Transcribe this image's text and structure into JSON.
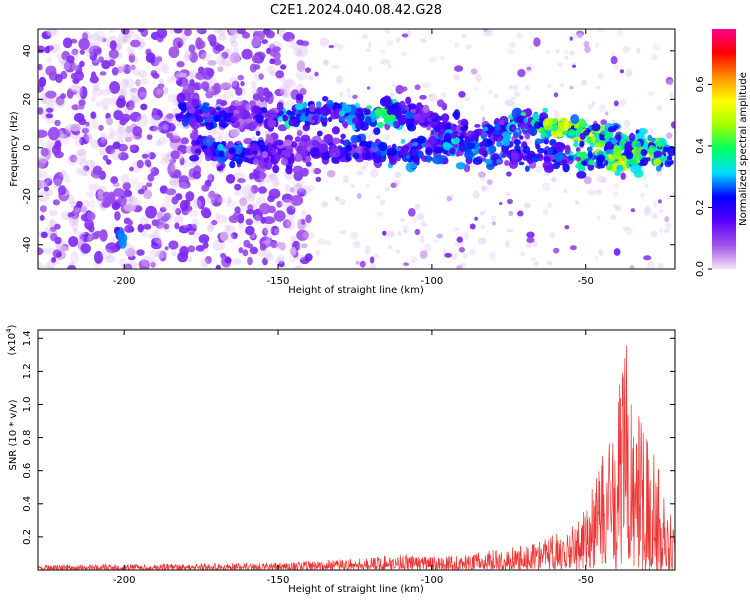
{
  "title": "C2E1.2024.040.08.42.G28",
  "chart_data": [
    {
      "type": "scatter",
      "xlabel": "Height of straight line (km)",
      "ylabel": "Frequency (Hz)",
      "xlim": [
        -228,
        -21
      ],
      "ylim": [
        -50,
        49
      ],
      "x_ticks": [
        -200,
        -150,
        -100,
        -50
      ],
      "y_ticks": [
        -40,
        -20,
        0,
        20,
        40
      ],
      "x_tick_labels": [
        "-200",
        "-150",
        "-100",
        "-50"
      ],
      "y_tick_labels": [
        "-40",
        "-20",
        "0",
        "20",
        "40"
      ],
      "grid": false,
      "colorbar": {
        "label": "Normalized spectral amplitude",
        "range": [
          0,
          0.78
        ],
        "ticks": [
          0.0,
          0.2,
          0.4,
          0.6
        ],
        "tick_labels": [
          "0.0",
          "0.2",
          "0.4",
          "0.6"
        ],
        "colors": [
          "#f2e3f7",
          "#a050e8",
          "#5a00ff",
          "#0000ff",
          "#00e0ff",
          "#00ff60",
          "#a0ff00",
          "#ffff00",
          "#ff9000",
          "#ff0000",
          "#ff0090"
        ]
      },
      "background_scatter": {
        "x_range": [
          -228,
          -21
        ],
        "y_range": [
          -50,
          49
        ],
        "typical_amplitude": [
          0.02,
          0.12
        ],
        "density_high_x": [
          -228,
          -140
        ]
      },
      "main_track": {
        "name": "",
        "points": [
          {
            "x": -183,
            "y": 15,
            "amp": 0.2
          },
          {
            "x": -175,
            "y": 14,
            "amp": 0.28
          },
          {
            "x": -160,
            "y": 12,
            "amp": 0.12
          },
          {
            "x": -148,
            "y": 13,
            "amp": 0.32
          },
          {
            "x": -135,
            "y": 15,
            "amp": 0.25
          },
          {
            "x": -122,
            "y": 13,
            "amp": 0.3
          },
          {
            "x": -115,
            "y": 14,
            "amp": 0.42
          },
          {
            "x": -105,
            "y": 14,
            "amp": 0.18
          },
          {
            "x": -95,
            "y": 8,
            "amp": 0.2
          },
          {
            "x": -85,
            "y": 6,
            "amp": 0.25
          },
          {
            "x": -75,
            "y": 8,
            "amp": 0.3
          },
          {
            "x": -65,
            "y": 10,
            "amp": 0.45
          },
          {
            "x": -55,
            "y": 8,
            "amp": 0.55
          },
          {
            "x": -45,
            "y": 5,
            "amp": 0.45
          },
          {
            "x": -35,
            "y": 3,
            "amp": 0.35
          },
          {
            "x": -25,
            "y": 0,
            "amp": 0.6
          }
        ]
      },
      "secondary_track": {
        "name": "",
        "points": [
          {
            "x": -178,
            "y": 3,
            "amp": 0.2
          },
          {
            "x": -168,
            "y": -3,
            "amp": 0.3
          },
          {
            "x": -150,
            "y": -2,
            "amp": 0.15
          },
          {
            "x": -128,
            "y": 0,
            "amp": 0.22
          },
          {
            "x": -110,
            "y": -3,
            "amp": 0.28
          },
          {
            "x": -100,
            "y": 0,
            "amp": 0.25
          },
          {
            "x": -88,
            "y": 0,
            "amp": 0.32
          },
          {
            "x": -80,
            "y": -3,
            "amp": 0.3
          },
          {
            "x": -70,
            "y": -2,
            "amp": 0.22
          },
          {
            "x": -60,
            "y": -3,
            "amp": 0.25
          },
          {
            "x": -50,
            "y": -3,
            "amp": 0.4
          },
          {
            "x": -40,
            "y": -5,
            "amp": 0.5
          },
          {
            "x": -30,
            "y": -4,
            "amp": 0.45
          },
          {
            "x": -22,
            "y": -2,
            "amp": 0.4
          }
        ]
      },
      "isolated_peaks": [
        {
          "x": -201,
          "y": -37,
          "amp": 0.3
        }
      ]
    },
    {
      "type": "line",
      "xlabel": "Height of straight line (km)",
      "ylabel": "SNR (10 * v/v)",
      "scale_note": "(x10",
      "scale_exp": "4",
      "scale_close": ")",
      "xlim": [
        -228,
        -21
      ],
      "ylim": [
        0,
        1.45
      ],
      "x_ticks": [
        -200,
        -150,
        -100,
        -50
      ],
      "y_ticks": [
        0.2,
        0.4,
        0.6,
        0.8,
        1.0,
        1.2,
        1.4
      ],
      "x_tick_labels": [
        "-200",
        "-150",
        "-100",
        "-50"
      ],
      "y_tick_labels": [
        "0.2",
        "0.4",
        "0.6",
        "0.8",
        "1.0",
        "1.2",
        "1.4"
      ],
      "grid": false,
      "series": [
        {
          "name": "",
          "color": "#ee3333",
          "envelope": [
            {
              "x": -228,
              "y": 0.03
            },
            {
              "x": -200,
              "y": 0.035
            },
            {
              "x": -175,
              "y": 0.04
            },
            {
              "x": -150,
              "y": 0.045
            },
            {
              "x": -125,
              "y": 0.07
            },
            {
              "x": -110,
              "y": 0.1
            },
            {
              "x": -100,
              "y": 0.08
            },
            {
              "x": -90,
              "y": 0.09
            },
            {
              "x": -80,
              "y": 0.12
            },
            {
              "x": -70,
              "y": 0.15
            },
            {
              "x": -60,
              "y": 0.22
            },
            {
              "x": -52,
              "y": 0.32
            },
            {
              "x": -48,
              "y": 0.5
            },
            {
              "x": -44,
              "y": 0.72
            },
            {
              "x": -40,
              "y": 1.05
            },
            {
              "x": -36,
              "y": 1.45
            },
            {
              "x": -33,
              "y": 1.2
            },
            {
              "x": -30,
              "y": 0.8
            },
            {
              "x": -27,
              "y": 0.7
            },
            {
              "x": -24,
              "y": 0.4
            },
            {
              "x": -21,
              "y": 0.32
            }
          ]
        }
      ]
    }
  ]
}
